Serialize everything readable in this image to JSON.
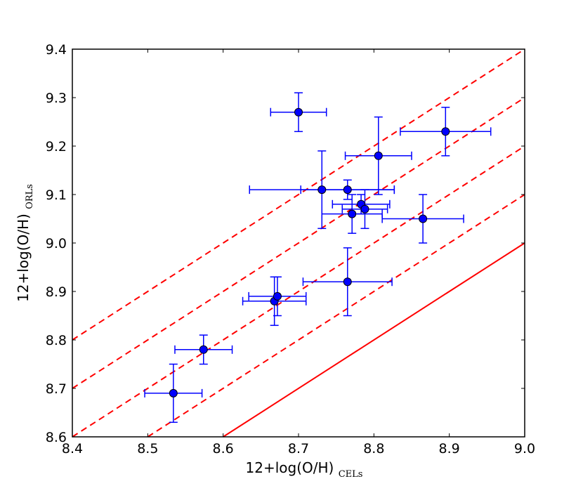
{
  "chart_data": {
    "type": "scatter",
    "title": "",
    "xlabel": "12+log(O/H)",
    "xlabel_subscript": "CELs",
    "ylabel": "12+log(O/H)",
    "ylabel_subscript": "ORLs",
    "xlim": [
      8.4,
      9.0
    ],
    "ylim": [
      8.6,
      9.4
    ],
    "xticks": [
      8.4,
      8.5,
      8.6,
      8.7,
      8.8,
      8.9,
      9.0
    ],
    "xtick_labels": [
      "8.4",
      "8.5",
      "8.6",
      "8.7",
      "8.8",
      "8.9",
      "9.0"
    ],
    "yticks": [
      8.6,
      8.7,
      8.8,
      8.9,
      9.0,
      9.1,
      9.2,
      9.3,
      9.4
    ],
    "ytick_labels": [
      "8.6",
      "8.7",
      "8.8",
      "8.9",
      "9.0",
      "9.1",
      "9.2",
      "9.3",
      "9.4"
    ],
    "grid": false,
    "colors": {
      "points": "#0000ff",
      "errorbars": "#0000ff",
      "lines": "#ff0000"
    },
    "reference_lines": [
      {
        "name": "one-to-one",
        "offset": 0.0,
        "style": "solid"
      },
      {
        "name": "offset-0.1",
        "offset": 0.1,
        "style": "dashed"
      },
      {
        "name": "offset-0.2",
        "offset": 0.2,
        "style": "dashed"
      },
      {
        "name": "offset-0.3",
        "offset": 0.3,
        "style": "dashed"
      },
      {
        "name": "offset-0.4",
        "offset": 0.4,
        "style": "dashed"
      }
    ],
    "points": [
      {
        "x": 8.534,
        "y": 8.69,
        "xerr": 0.038,
        "yerr": 0.06
      },
      {
        "x": 8.574,
        "y": 8.78,
        "xerr": 0.038,
        "yerr": 0.03
      },
      {
        "x": 8.668,
        "y": 8.88,
        "xerr": 0.042,
        "yerr": 0.05
      },
      {
        "x": 8.672,
        "y": 8.89,
        "xerr": 0.038,
        "yerr": 0.04
      },
      {
        "x": 8.7,
        "y": 9.27,
        "xerr": 0.037,
        "yerr": 0.04
      },
      {
        "x": 8.731,
        "y": 9.11,
        "xerr": 0.096,
        "yerr": 0.08
      },
      {
        "x": 8.765,
        "y": 9.11,
        "xerr": 0.062,
        "yerr": 0.02
      },
      {
        "x": 8.765,
        "y": 8.92,
        "xerr": 0.059,
        "yerr": 0.07
      },
      {
        "x": 8.771,
        "y": 9.06,
        "xerr": 0.04,
        "yerr": 0.04
      },
      {
        "x": 8.783,
        "y": 9.08,
        "xerr": 0.038,
        "yerr": 0.02
      },
      {
        "x": 8.788,
        "y": 9.07,
        "xerr": 0.03,
        "yerr": 0.04
      },
      {
        "x": 8.806,
        "y": 9.18,
        "xerr": 0.044,
        "yerr": 0.08
      },
      {
        "x": 8.865,
        "y": 9.05,
        "xerr": 0.054,
        "yerr": 0.05
      },
      {
        "x": 8.895,
        "y": 9.23,
        "xerr": 0.06,
        "yerr": 0.05
      }
    ]
  }
}
